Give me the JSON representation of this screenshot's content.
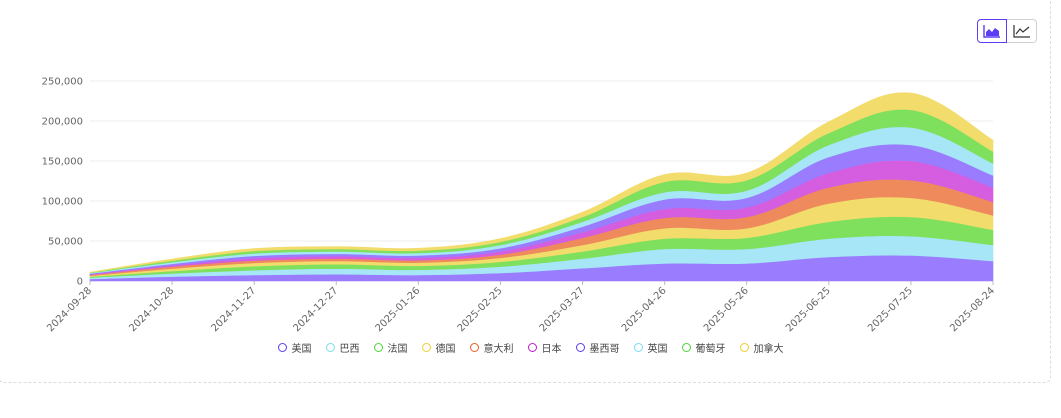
{
  "toolbar": {
    "area_icon": "area-chart-icon",
    "line_icon": "line-chart-icon",
    "accent": "#5b3df5"
  },
  "chart_data": {
    "type": "area",
    "stacked": true,
    "title": "",
    "xlabel": "",
    "ylabel": "",
    "ylim": [
      0,
      250000
    ],
    "yticks": [
      0,
      50000,
      100000,
      150000,
      200000,
      250000
    ],
    "ytick_labels": [
      "0",
      "50,000",
      "100,000",
      "150,000",
      "200,000",
      "250,000"
    ],
    "x": [
      "2024-09-28",
      "2024-10-28",
      "2024-11-27",
      "2024-12-27",
      "2025-01-26",
      "2025-02-25",
      "2025-03-27",
      "2025-04-26",
      "2025-05-26",
      "2025-06-25",
      "2025-07-25",
      "2025-08-24"
    ],
    "grid": true,
    "legend_position": "bottom",
    "series": [
      {
        "name": "美国",
        "color": "#9a7cff",
        "values": [
          2500,
          5500,
          7500,
          8500,
          7500,
          10000,
          16000,
          22000,
          22000,
          30000,
          32000,
          25000
        ]
      },
      {
        "name": "巴西",
        "color": "#a6e6f7",
        "values": [
          1700,
          4000,
          6000,
          7000,
          6500,
          8000,
          12000,
          18000,
          18000,
          23000,
          24000,
          20000
        ]
      },
      {
        "name": "法国",
        "color": "#7fe05d",
        "values": [
          1300,
          3000,
          5000,
          5500,
          5000,
          6000,
          9000,
          13000,
          14000,
          21000,
          24000,
          19000
        ]
      },
      {
        "name": "德国",
        "color": "#f2dc6b",
        "values": [
          1000,
          3000,
          4000,
          4000,
          4000,
          5000,
          8000,
          13000,
          12000,
          23000,
          24000,
          18000
        ]
      },
      {
        "name": "意大利",
        "color": "#ee8a5c",
        "values": [
          1000,
          2500,
          3000,
          3000,
          3000,
          4000,
          9000,
          13000,
          14000,
          20000,
          22000,
          17000
        ]
      },
      {
        "name": "日本",
        "color": "#d55de0",
        "values": [
          800,
          1500,
          3000,
          3000,
          3000,
          4000,
          7000,
          11000,
          12000,
          18000,
          24000,
          18000
        ]
      },
      {
        "name": "墨西哥",
        "color": "#9a7cff",
        "values": [
          900,
          2000,
          3000,
          3000,
          3000,
          4000,
          7000,
          12000,
          12000,
          20000,
          20000,
          15000
        ]
      },
      {
        "name": "英国",
        "color": "#a6e6f7",
        "values": [
          800,
          2000,
          3000,
          3000,
          3000,
          4000,
          6000,
          9000,
          9000,
          15000,
          22000,
          15000
        ]
      },
      {
        "name": "葡萄牙",
        "color": "#7fe05d",
        "values": [
          500,
          2000,
          3000,
          3000,
          3000,
          4000,
          6000,
          13000,
          13000,
          15000,
          22000,
          15000
        ]
      },
      {
        "name": "加拿大",
        "color": "#f2dc6b",
        "values": [
          500,
          2000,
          3000,
          3000,
          3000,
          4000,
          6000,
          9000,
          9000,
          14000,
          21000,
          14000
        ]
      }
    ]
  },
  "legend": [
    {
      "label": "美国",
      "color": "#5b3df5"
    },
    {
      "label": "巴西",
      "color": "#78dbf0"
    },
    {
      "label": "法国",
      "color": "#4ed43a"
    },
    {
      "label": "德国",
      "color": "#f0cc2c"
    },
    {
      "label": "意大利",
      "color": "#ee5a26"
    },
    {
      "label": "日本",
      "color": "#c21ad0"
    },
    {
      "label": "墨西哥",
      "color": "#5b3df5"
    },
    {
      "label": "英国",
      "color": "#78dbf0"
    },
    {
      "label": "葡萄牙",
      "color": "#4ed43a"
    },
    {
      "label": "加拿大",
      "color": "#f0cc2c"
    }
  ]
}
